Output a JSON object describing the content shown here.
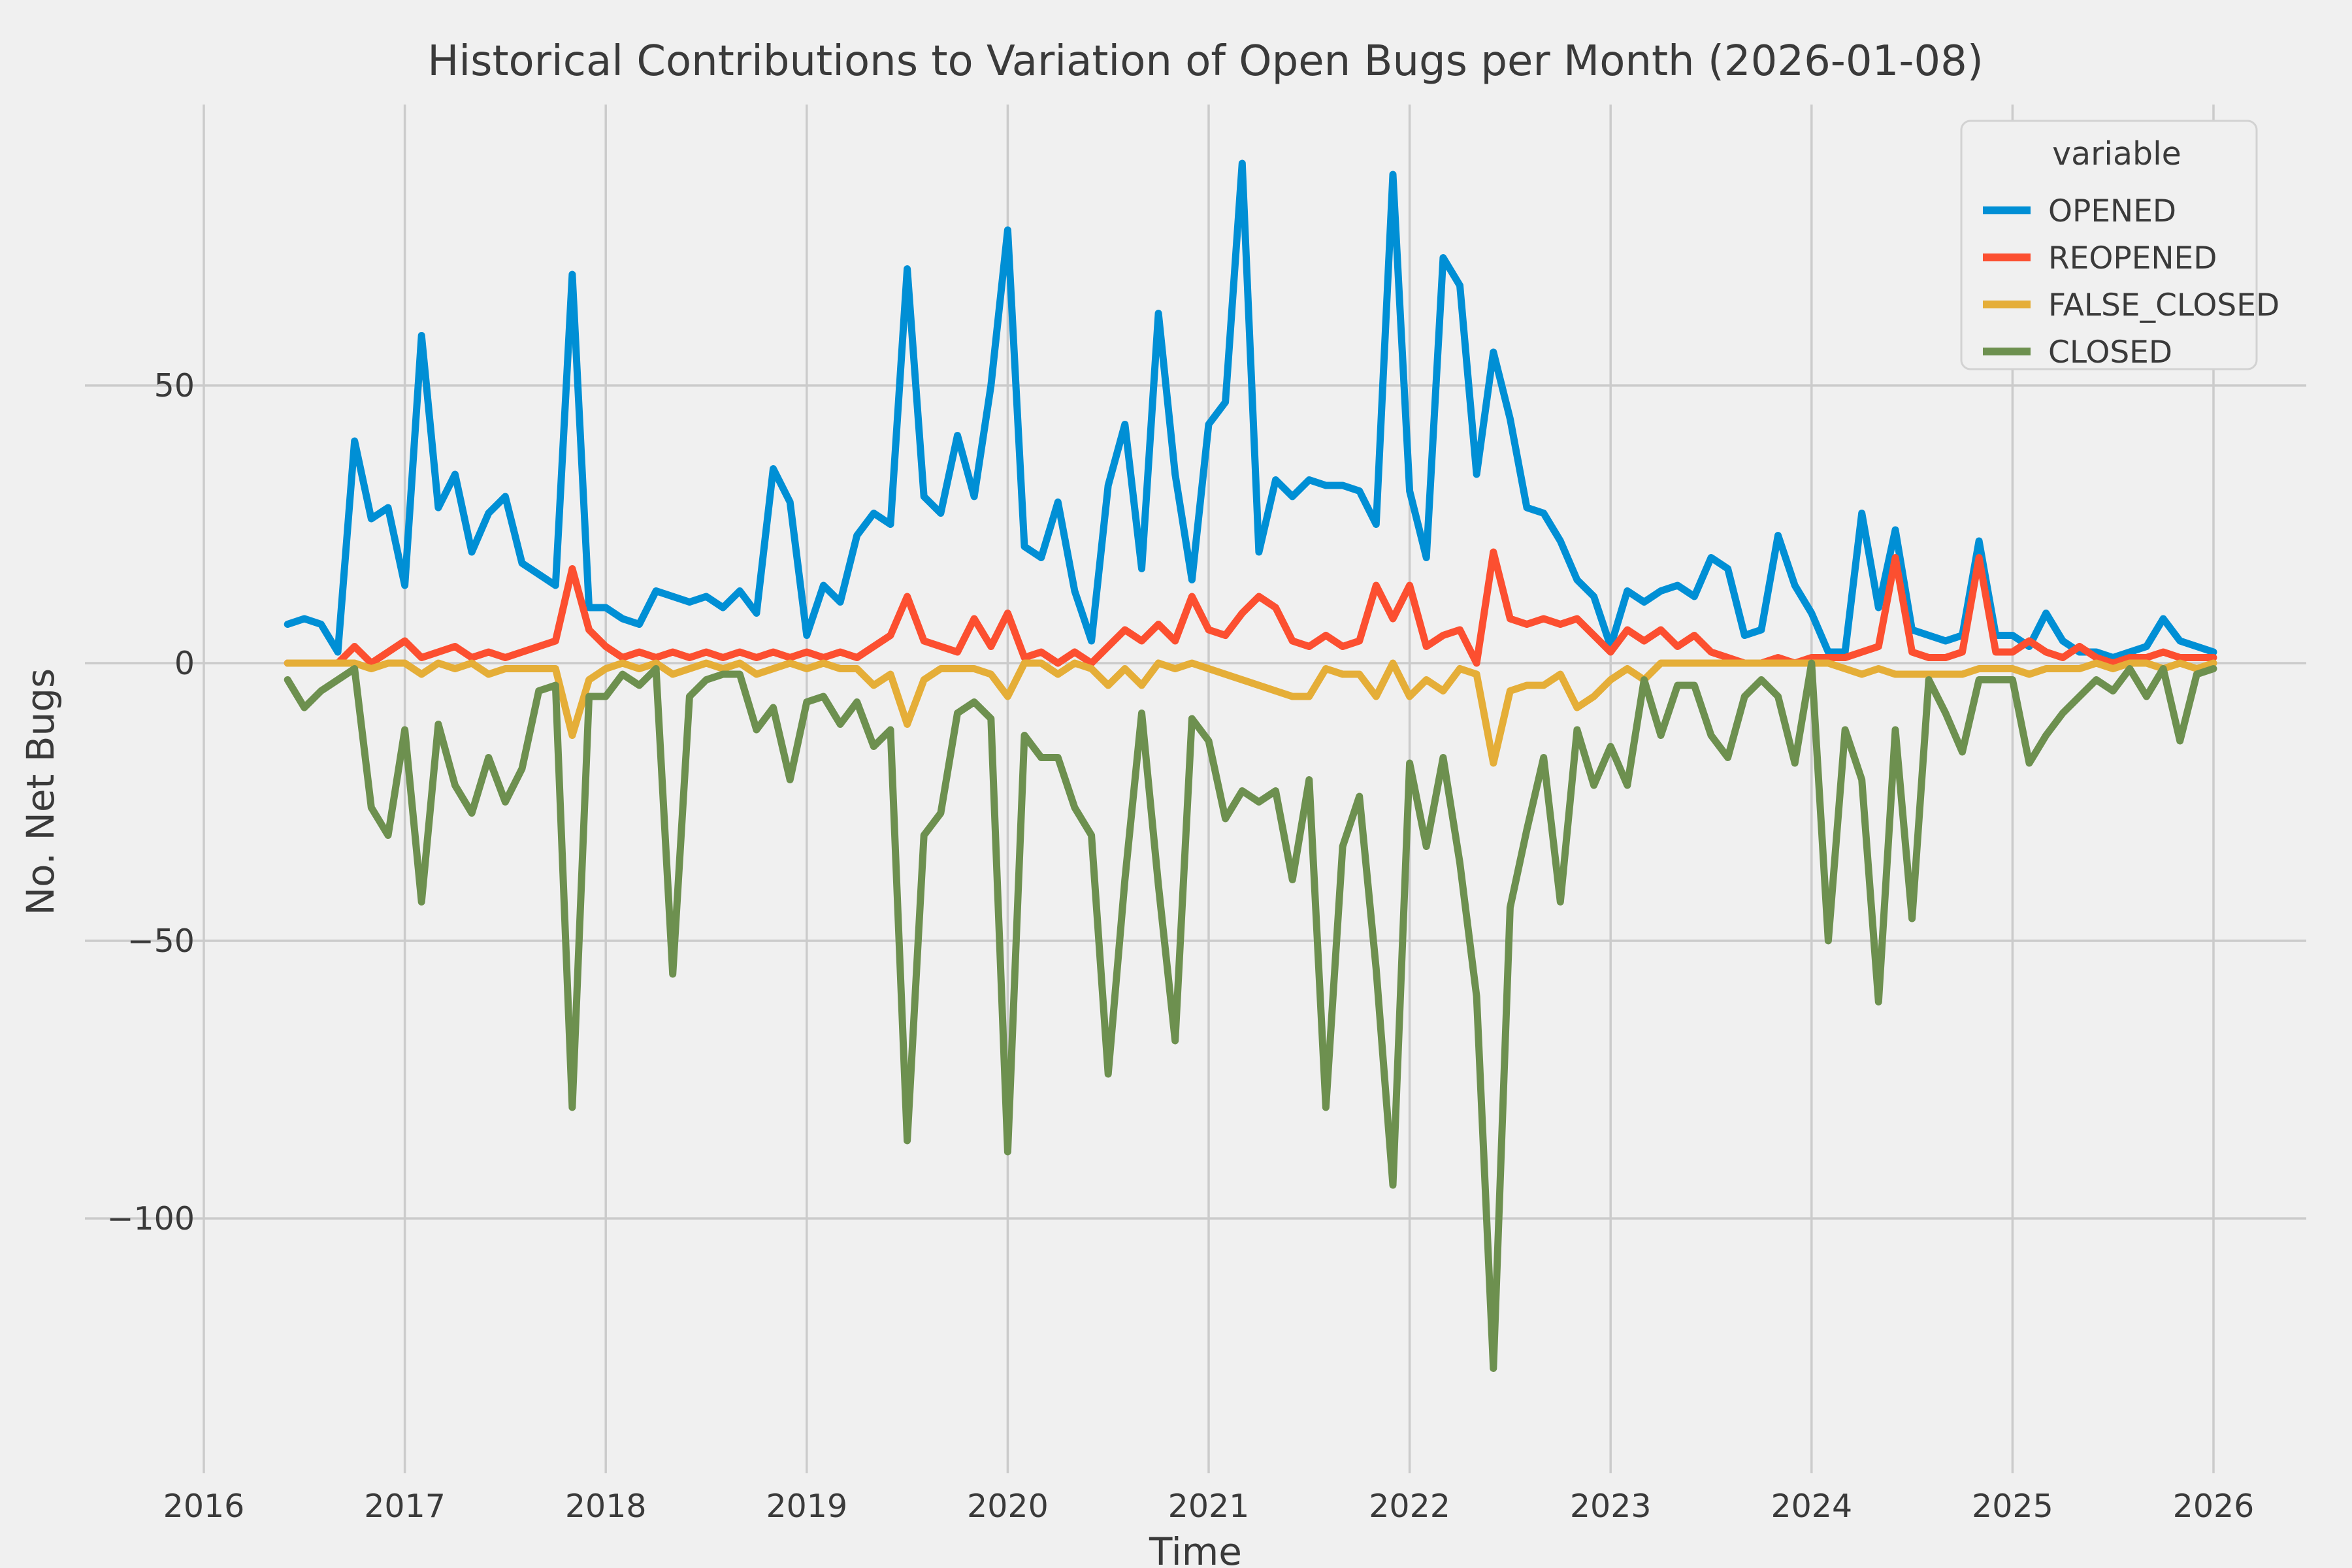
{
  "title": "Historical Contributions to Variation of Open Bugs per Month (2026-01-08)",
  "axes": {
    "xlabel": "Time",
    "ylabel": "No. Net Bugs",
    "x_ticks": [
      2016,
      2017,
      2018,
      2019,
      2020,
      2021,
      2022,
      2023,
      2024,
      2025,
      2026
    ],
    "y_ticks": [
      50,
      0,
      -50,
      -100
    ]
  },
  "legend": {
    "title": "variable",
    "entries": [
      "OPENED",
      "REOPENED",
      "FALSE_CLOSED",
      "CLOSED"
    ]
  },
  "colors": {
    "background": "#f0f0f0",
    "gridline": "#cbcbcb",
    "text": "#3a3a3a",
    "OPENED": "#008fd5",
    "REOPENED": "#fc4f30",
    "FALSE_CLOSED": "#e5ae38",
    "CLOSED": "#6d904f"
  },
  "chart_data": {
    "type": "line",
    "title": "Historical Contributions to Variation of Open Bugs per Month (2026-01-08)",
    "xlabel": "Time",
    "ylabel": "No. Net Bugs",
    "x_start_month": "2016-06",
    "x_end_month": "2026-01",
    "xlim": [
      2015.42,
      2026.46
    ],
    "ylim": [
      -146,
      101
    ],
    "grid": true,
    "legend_position": "upper right",
    "series": [
      {
        "name": "OPENED",
        "color": "#008fd5",
        "values": [
          7,
          8,
          7,
          2,
          40,
          26,
          28,
          14,
          59,
          28,
          34,
          20,
          27,
          30,
          18,
          16,
          14,
          70,
          10,
          10,
          8,
          7,
          13,
          12,
          11,
          12,
          10,
          13,
          9,
          35,
          29,
          5,
          14,
          11,
          23,
          27,
          25,
          71,
          30,
          27,
          41,
          30,
          50,
          78,
          21,
          19,
          29,
          13,
          4,
          32,
          43,
          17,
          63,
          34,
          15,
          43,
          47,
          90,
          20,
          33,
          30,
          33,
          32,
          32,
          31,
          25,
          88,
          31,
          19,
          73,
          68,
          34,
          56,
          44,
          28,
          27,
          22,
          15,
          12,
          3,
          13,
          11,
          13,
          14,
          12,
          19,
          17,
          5,
          6,
          23,
          14,
          9,
          2,
          2,
          27,
          10,
          24,
          6,
          5,
          4,
          5,
          22,
          5,
          5,
          3,
          9,
          4,
          2,
          2,
          1,
          2,
          3,
          8,
          4,
          3,
          2
        ]
      },
      {
        "name": "REOPENED",
        "color": "#fc4f30",
        "values": [
          0,
          0,
          0,
          0,
          3,
          0,
          2,
          4,
          1,
          2,
          3,
          1,
          2,
          1,
          2,
          3,
          4,
          17,
          6,
          3,
          1,
          2,
          1,
          2,
          1,
          2,
          1,
          2,
          1,
          2,
          1,
          2,
          1,
          2,
          1,
          3,
          5,
          12,
          4,
          3,
          2,
          8,
          3,
          9,
          1,
          2,
          0,
          2,
          0,
          3,
          6,
          4,
          7,
          4,
          12,
          6,
          5,
          9,
          12,
          10,
          4,
          3,
          5,
          3,
          4,
          14,
          8,
          14,
          3,
          5,
          6,
          0,
          20,
          8,
          7,
          8,
          7,
          8,
          5,
          2,
          6,
          4,
          6,
          3,
          5,
          2,
          1,
          0,
          0,
          1,
          0,
          1,
          1,
          1,
          2,
          3,
          19,
          2,
          1,
          1,
          2,
          19,
          2,
          2,
          4,
          2,
          1,
          3,
          1,
          0,
          1,
          1,
          2,
          1,
          1,
          1
        ]
      },
      {
        "name": "FALSE_CLOSED",
        "color": "#e5ae38",
        "values": [
          0,
          0,
          0,
          0,
          0,
          -1,
          0,
          0,
          -2,
          0,
          -1,
          0,
          -2,
          -1,
          -1,
          -1,
          -1,
          -13,
          -3,
          -1,
          0,
          -1,
          0,
          -2,
          -1,
          0,
          -1,
          0,
          -2,
          -1,
          0,
          -1,
          0,
          -1,
          -1,
          -4,
          -2,
          -11,
          -3,
          -1,
          -1,
          -1,
          -2,
          -6,
          0,
          0,
          -2,
          0,
          -1,
          -4,
          -1,
          -4,
          0,
          -1,
          0,
          -1,
          -2,
          -3,
          -4,
          -5,
          -6,
          -6,
          -1,
          -2,
          -2,
          -6,
          0,
          -6,
          -3,
          -5,
          -1,
          -2,
          -18,
          -5,
          -4,
          -4,
          -2,
          -8,
          -6,
          -3,
          -1,
          -3,
          0,
          0,
          0,
          0,
          0,
          0,
          0,
          0,
          0,
          0,
          0,
          -1,
          -2,
          -1,
          -2,
          -2,
          -2,
          -2,
          -2,
          -1,
          -1,
          -1,
          -2,
          -1,
          -1,
          -1,
          0,
          -1,
          0,
          0,
          -1,
          0,
          -1,
          0
        ]
      },
      {
        "name": "CLOSED",
        "color": "#6d904f",
        "values": [
          -3,
          -8,
          -5,
          -3,
          -1,
          -26,
          -31,
          -12,
          -43,
          -11,
          -22,
          -27,
          -17,
          -25,
          -19,
          -5,
          -4,
          -80,
          -6,
          -6,
          -2,
          -4,
          -1,
          -56,
          -6,
          -3,
          -2,
          -2,
          -12,
          -8,
          -21,
          -7,
          -6,
          -11,
          -7,
          -15,
          -12,
          -86,
          -31,
          -27,
          -9,
          -7,
          -10,
          -88,
          -13,
          -17,
          -17,
          -26,
          -31,
          -74,
          -39,
          -9,
          -40,
          -68,
          -10,
          -14,
          -28,
          -23,
          -25,
          -23,
          -39,
          -21,
          -80,
          -33,
          -24,
          -55,
          -94,
          -18,
          -33,
          -17,
          -36,
          -60,
          -127,
          -44,
          -30,
          -17,
          -43,
          -12,
          -22,
          -15,
          -22,
          -3,
          -13,
          -4,
          -4,
          -13,
          -17,
          -6,
          -3,
          -6,
          -18,
          0,
          -50,
          -12,
          -21,
          -61,
          -12,
          -46,
          -3,
          -9,
          -16,
          -3,
          -3,
          -3,
          -18,
          -13,
          -9,
          -6,
          -3,
          -5,
          -1,
          -6,
          -1,
          -14,
          -2,
          -1
        ]
      }
    ]
  }
}
